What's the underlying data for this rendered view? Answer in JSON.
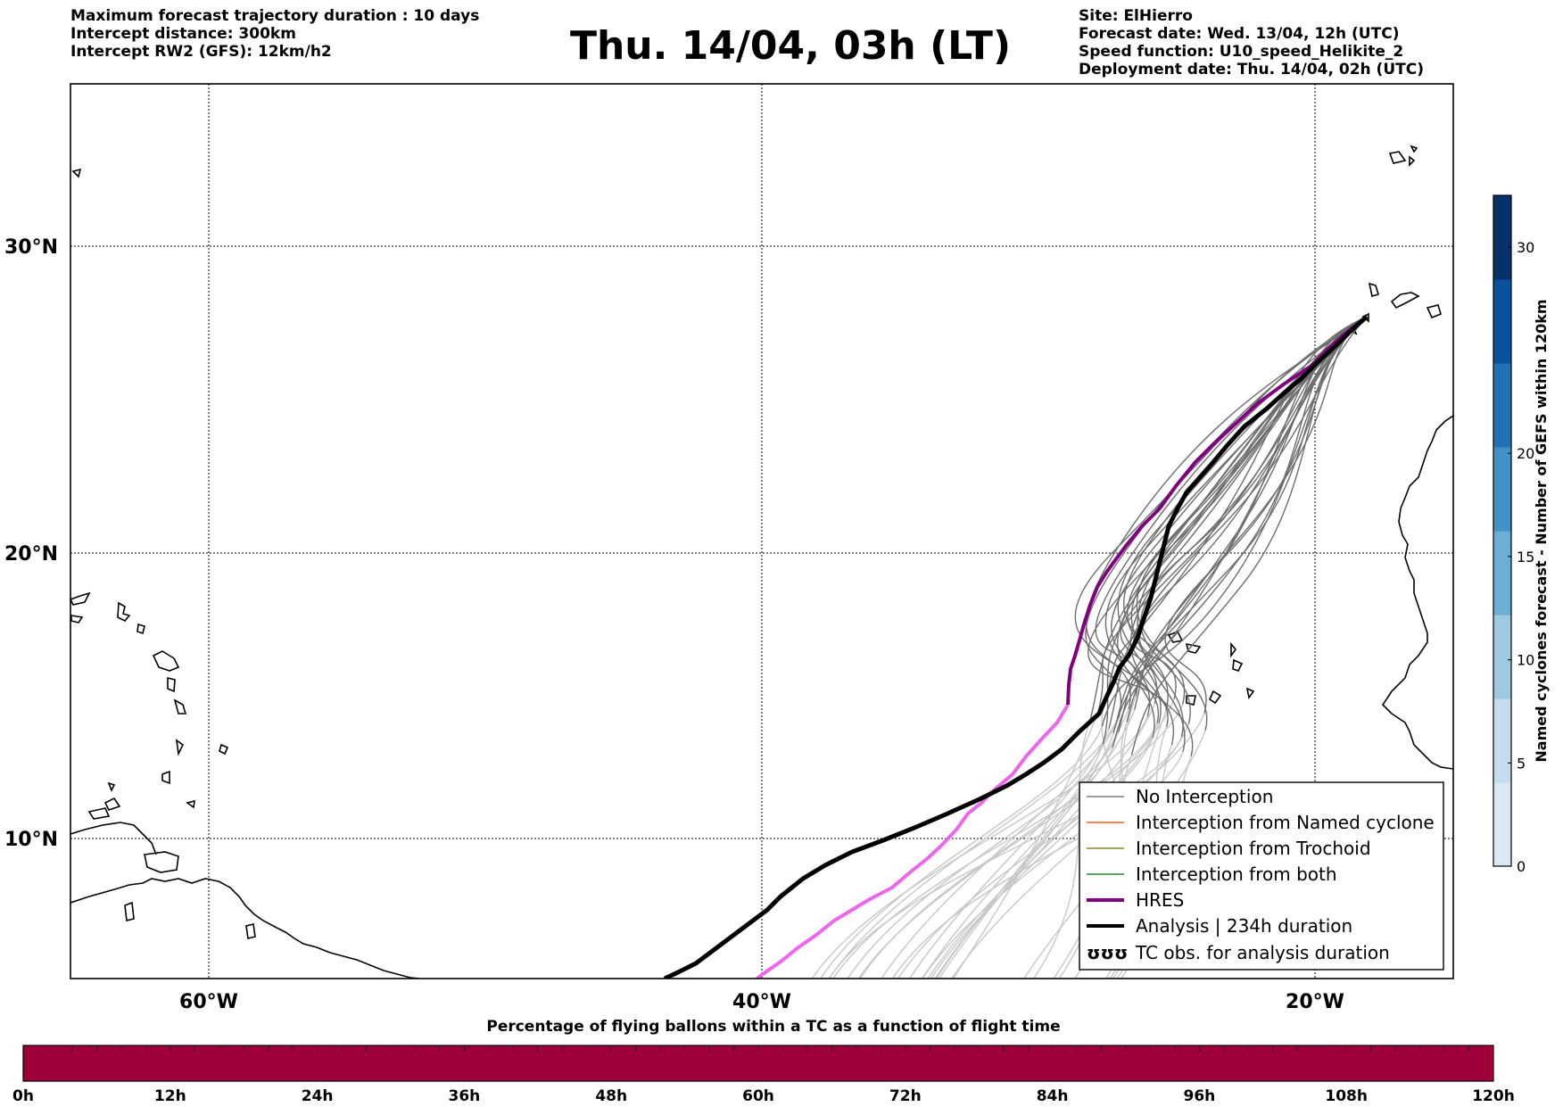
{
  "header_left": [
    "Maximum forecast trajectory duration : 10 days",
    "Intercept distance: 300km",
    "Intercept RW2 (GFS):  12km/h2"
  ],
  "title": "Thu. 14/04, 03h (LT)",
  "header_right": [
    "Site: ElHierro",
    "Forecast date: Wed. 13/04, 12h (UTC)",
    "Speed function: U10_speed_Helikite_2",
    "Deployment date: Thu. 14/04, 02h (UTC)"
  ],
  "map": {
    "lon_range": [
      -65,
      -15
    ],
    "lat_range": [
      5.4,
      34.7
    ],
    "lon_ticks": [
      "60°W",
      "40°W",
      "20°W"
    ],
    "lat_ticks": [
      "30°N",
      "20°N",
      "10°N"
    ],
    "gridlines": true,
    "colors": {
      "no_interception_near": "#6e6e6e",
      "no_interception_far": "#c8c8c8",
      "hres": "#800080",
      "hres_far": "#ee66ee",
      "analysis": "#000000",
      "named": "#ff5a1e",
      "trochoid": "#8a8a2a",
      "both": "#2a8a2a"
    }
  },
  "legend": {
    "placement": "lower-right",
    "items": [
      {
        "label": "No Interception",
        "key": "no-interception"
      },
      {
        "label": "Interception from Named cyclone",
        "key": "named-cyclone"
      },
      {
        "label": "Interception from Trochoid",
        "key": "trochoid"
      },
      {
        "label": "Interception from both",
        "key": "both"
      },
      {
        "label": "HRES",
        "key": "hres"
      },
      {
        "label": "Analysis | 234h duration",
        "key": "analysis"
      },
      {
        "label": "TC obs. for analysis duration",
        "key": "tc-obs",
        "symbol": "ʊʊʊ"
      }
    ]
  },
  "colorbar": {
    "label": "Named cyclones forecast - Number of GEFS within 120km",
    "ticks": [
      "0",
      "5",
      "10",
      "15",
      "20",
      "30"
    ],
    "colors": [
      "#dbe7f4",
      "#c6dbef",
      "#9ecae1",
      "#6baed6",
      "#4292c6",
      "#2171b5",
      "#08519c",
      "#08306b"
    ]
  },
  "pct_bar": {
    "title": "Percentage of flying ballons within a TC as a function of flight time",
    "color": "#a0003a",
    "ticks": [
      "0h",
      "12h",
      "24h",
      "36h",
      "48h",
      "60h",
      "72h",
      "84h",
      "96h",
      "108h",
      "120h"
    ]
  }
}
